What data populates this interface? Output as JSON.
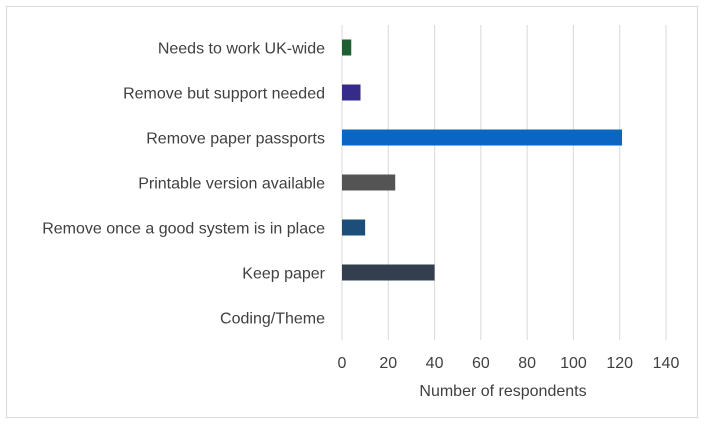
{
  "chart_data": {
    "type": "bar",
    "orientation": "horizontal",
    "categories": [
      "Needs to work UK-wide",
      "Remove but support needed",
      "Remove paper passports",
      "Printable version available",
      "Remove once a good system is in place",
      "Keep paper",
      "Coding/Theme"
    ],
    "values": [
      4,
      8,
      121,
      23,
      10,
      40,
      0
    ],
    "colors": [
      "#1e5e32",
      "#362a8a",
      "#0a66c2",
      "#545454",
      "#1d4e79",
      "#333f4f",
      "#ffffff"
    ],
    "xlabel": "Number of respondents",
    "ylabel": "",
    "xlim": [
      0,
      140
    ],
    "xticks": [
      "0",
      "20",
      "40",
      "60",
      "80",
      "100",
      "120",
      "140"
    ],
    "grid": "vertical",
    "legend": "none"
  }
}
